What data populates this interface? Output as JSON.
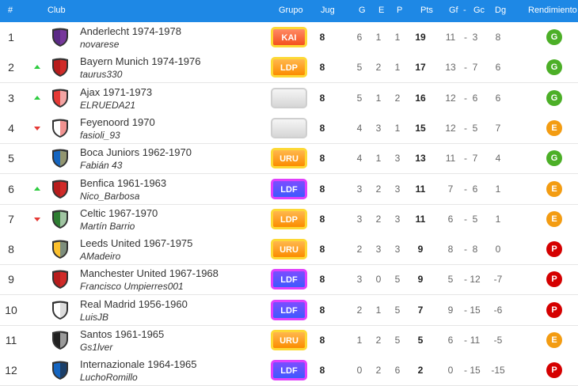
{
  "header": {
    "pos": "#",
    "club": "Club",
    "group": "Grupo",
    "played": "Jug",
    "won": "G",
    "drawn": "E",
    "lost": "P",
    "points": "Pts",
    "gf": "Gf",
    "dash": "-",
    "gc": "Gc",
    "dg": "Dg",
    "performance": "Rendimiento"
  },
  "colors": {
    "header_bg": "#1e88e5",
    "good": "#4caf27",
    "even": "#f39c12",
    "poor": "#d50000",
    "up": "#2ecc40",
    "down": "#e53935"
  },
  "rows": [
    {
      "pos": "1",
      "trend": "none",
      "club": "Anderlecht 1974-1978",
      "user": "novarese",
      "group": "KAI",
      "group_style": "red",
      "crest": "purple-shield",
      "played": "8",
      "w": "6",
      "d": "1",
      "l": "1",
      "pts": "19",
      "gf": "11",
      "gc": "3",
      "dg": "8",
      "perf": "G"
    },
    {
      "pos": "2",
      "trend": "up",
      "club": "Bayern Munich 1974-1976",
      "user": "taurus330",
      "group": "LDP",
      "group_style": "orange",
      "crest": "red-shield",
      "played": "8",
      "w": "5",
      "d": "2",
      "l": "1",
      "pts": "17",
      "gf": "13",
      "gc": "7",
      "dg": "6",
      "perf": "G"
    },
    {
      "pos": "3",
      "trend": "up",
      "club": "Ajax 1971-1973",
      "user": "ELRUEDA21",
      "group": "",
      "group_style": "blank",
      "crest": "red-white-shield",
      "played": "8",
      "w": "5",
      "d": "1",
      "l": "2",
      "pts": "16",
      "gf": "12",
      "gc": "6",
      "dg": "6",
      "perf": "G"
    },
    {
      "pos": "4",
      "trend": "down",
      "club": "Feyenoord 1970",
      "user": "fasioli_93",
      "group": "",
      "group_style": "blank",
      "crest": "red-white-half-shield",
      "played": "8",
      "w": "4",
      "d": "3",
      "l": "1",
      "pts": "15",
      "gf": "12",
      "gc": "5",
      "dg": "7",
      "perf": "E"
    },
    {
      "pos": "5",
      "trend": "none",
      "club": "Boca Juniors 1962-1970",
      "user": "Fabián 43",
      "group": "URU",
      "group_style": "orange",
      "crest": "blue-yellow-shield",
      "played": "8",
      "w": "4",
      "d": "1",
      "l": "3",
      "pts": "13",
      "gf": "11",
      "gc": "7",
      "dg": "4",
      "perf": "G"
    },
    {
      "pos": "6",
      "trend": "up",
      "club": "Benfica 1961-1963",
      "user": "Nico_Barbosa",
      "group": "LDF",
      "group_style": "purple",
      "crest": "red-shield",
      "played": "8",
      "w": "3",
      "d": "2",
      "l": "3",
      "pts": "11",
      "gf": "7",
      "gc": "6",
      "dg": "1",
      "perf": "E"
    },
    {
      "pos": "7",
      "trend": "down",
      "club": "Celtic 1967-1970",
      "user": "Martín Barrio",
      "group": "LDP",
      "group_style": "orange",
      "crest": "green-stripes-shield",
      "played": "8",
      "w": "3",
      "d": "2",
      "l": "3",
      "pts": "11",
      "gf": "6",
      "gc": "5",
      "dg": "1",
      "perf": "E"
    },
    {
      "pos": "8",
      "trend": "none",
      "club": "Leeds United 1967-1975",
      "user": "AMadeiro",
      "group": "URU",
      "group_style": "orange",
      "crest": "yellow-blue-shield",
      "played": "8",
      "w": "2",
      "d": "3",
      "l": "3",
      "pts": "9",
      "gf": "8",
      "gc": "8",
      "dg": "0",
      "perf": "P"
    },
    {
      "pos": "9",
      "trend": "none",
      "club": "Manchester United 1967-1968",
      "user": "Francisco Umpierres001",
      "group": "LDF",
      "group_style": "purple",
      "crest": "red-shield",
      "played": "8",
      "w": "3",
      "d": "0",
      "l": "5",
      "pts": "9",
      "gf": "5",
      "gc": "12",
      "dg": "-7",
      "perf": "P"
    },
    {
      "pos": "10",
      "trend": "none",
      "club": "Real Madrid 1956-1960",
      "user": "LuisJB",
      "group": "LDF",
      "group_style": "purple",
      "crest": "white-shield",
      "played": "8",
      "w": "2",
      "d": "1",
      "l": "5",
      "pts": "7",
      "gf": "9",
      "gc": "15",
      "dg": "-6",
      "perf": "P"
    },
    {
      "pos": "11",
      "trend": "none",
      "club": "Santos 1961-1965",
      "user": "Gs1lver",
      "group": "URU",
      "group_style": "orange",
      "crest": "black-white-shield",
      "played": "8",
      "w": "1",
      "d": "2",
      "l": "5",
      "pts": "5",
      "gf": "6",
      "gc": "11",
      "dg": "-5",
      "perf": "E"
    },
    {
      "pos": "12",
      "trend": "none",
      "club": "Internazionale 1964-1965",
      "user": "LuchoRomillo",
      "group": "LDF",
      "group_style": "purple",
      "crest": "blue-black-stripes-shield",
      "played": "8",
      "w": "0",
      "d": "2",
      "l": "6",
      "pts": "2",
      "gf": "0",
      "gc": "15",
      "dg": "-15",
      "perf": "P"
    }
  ]
}
